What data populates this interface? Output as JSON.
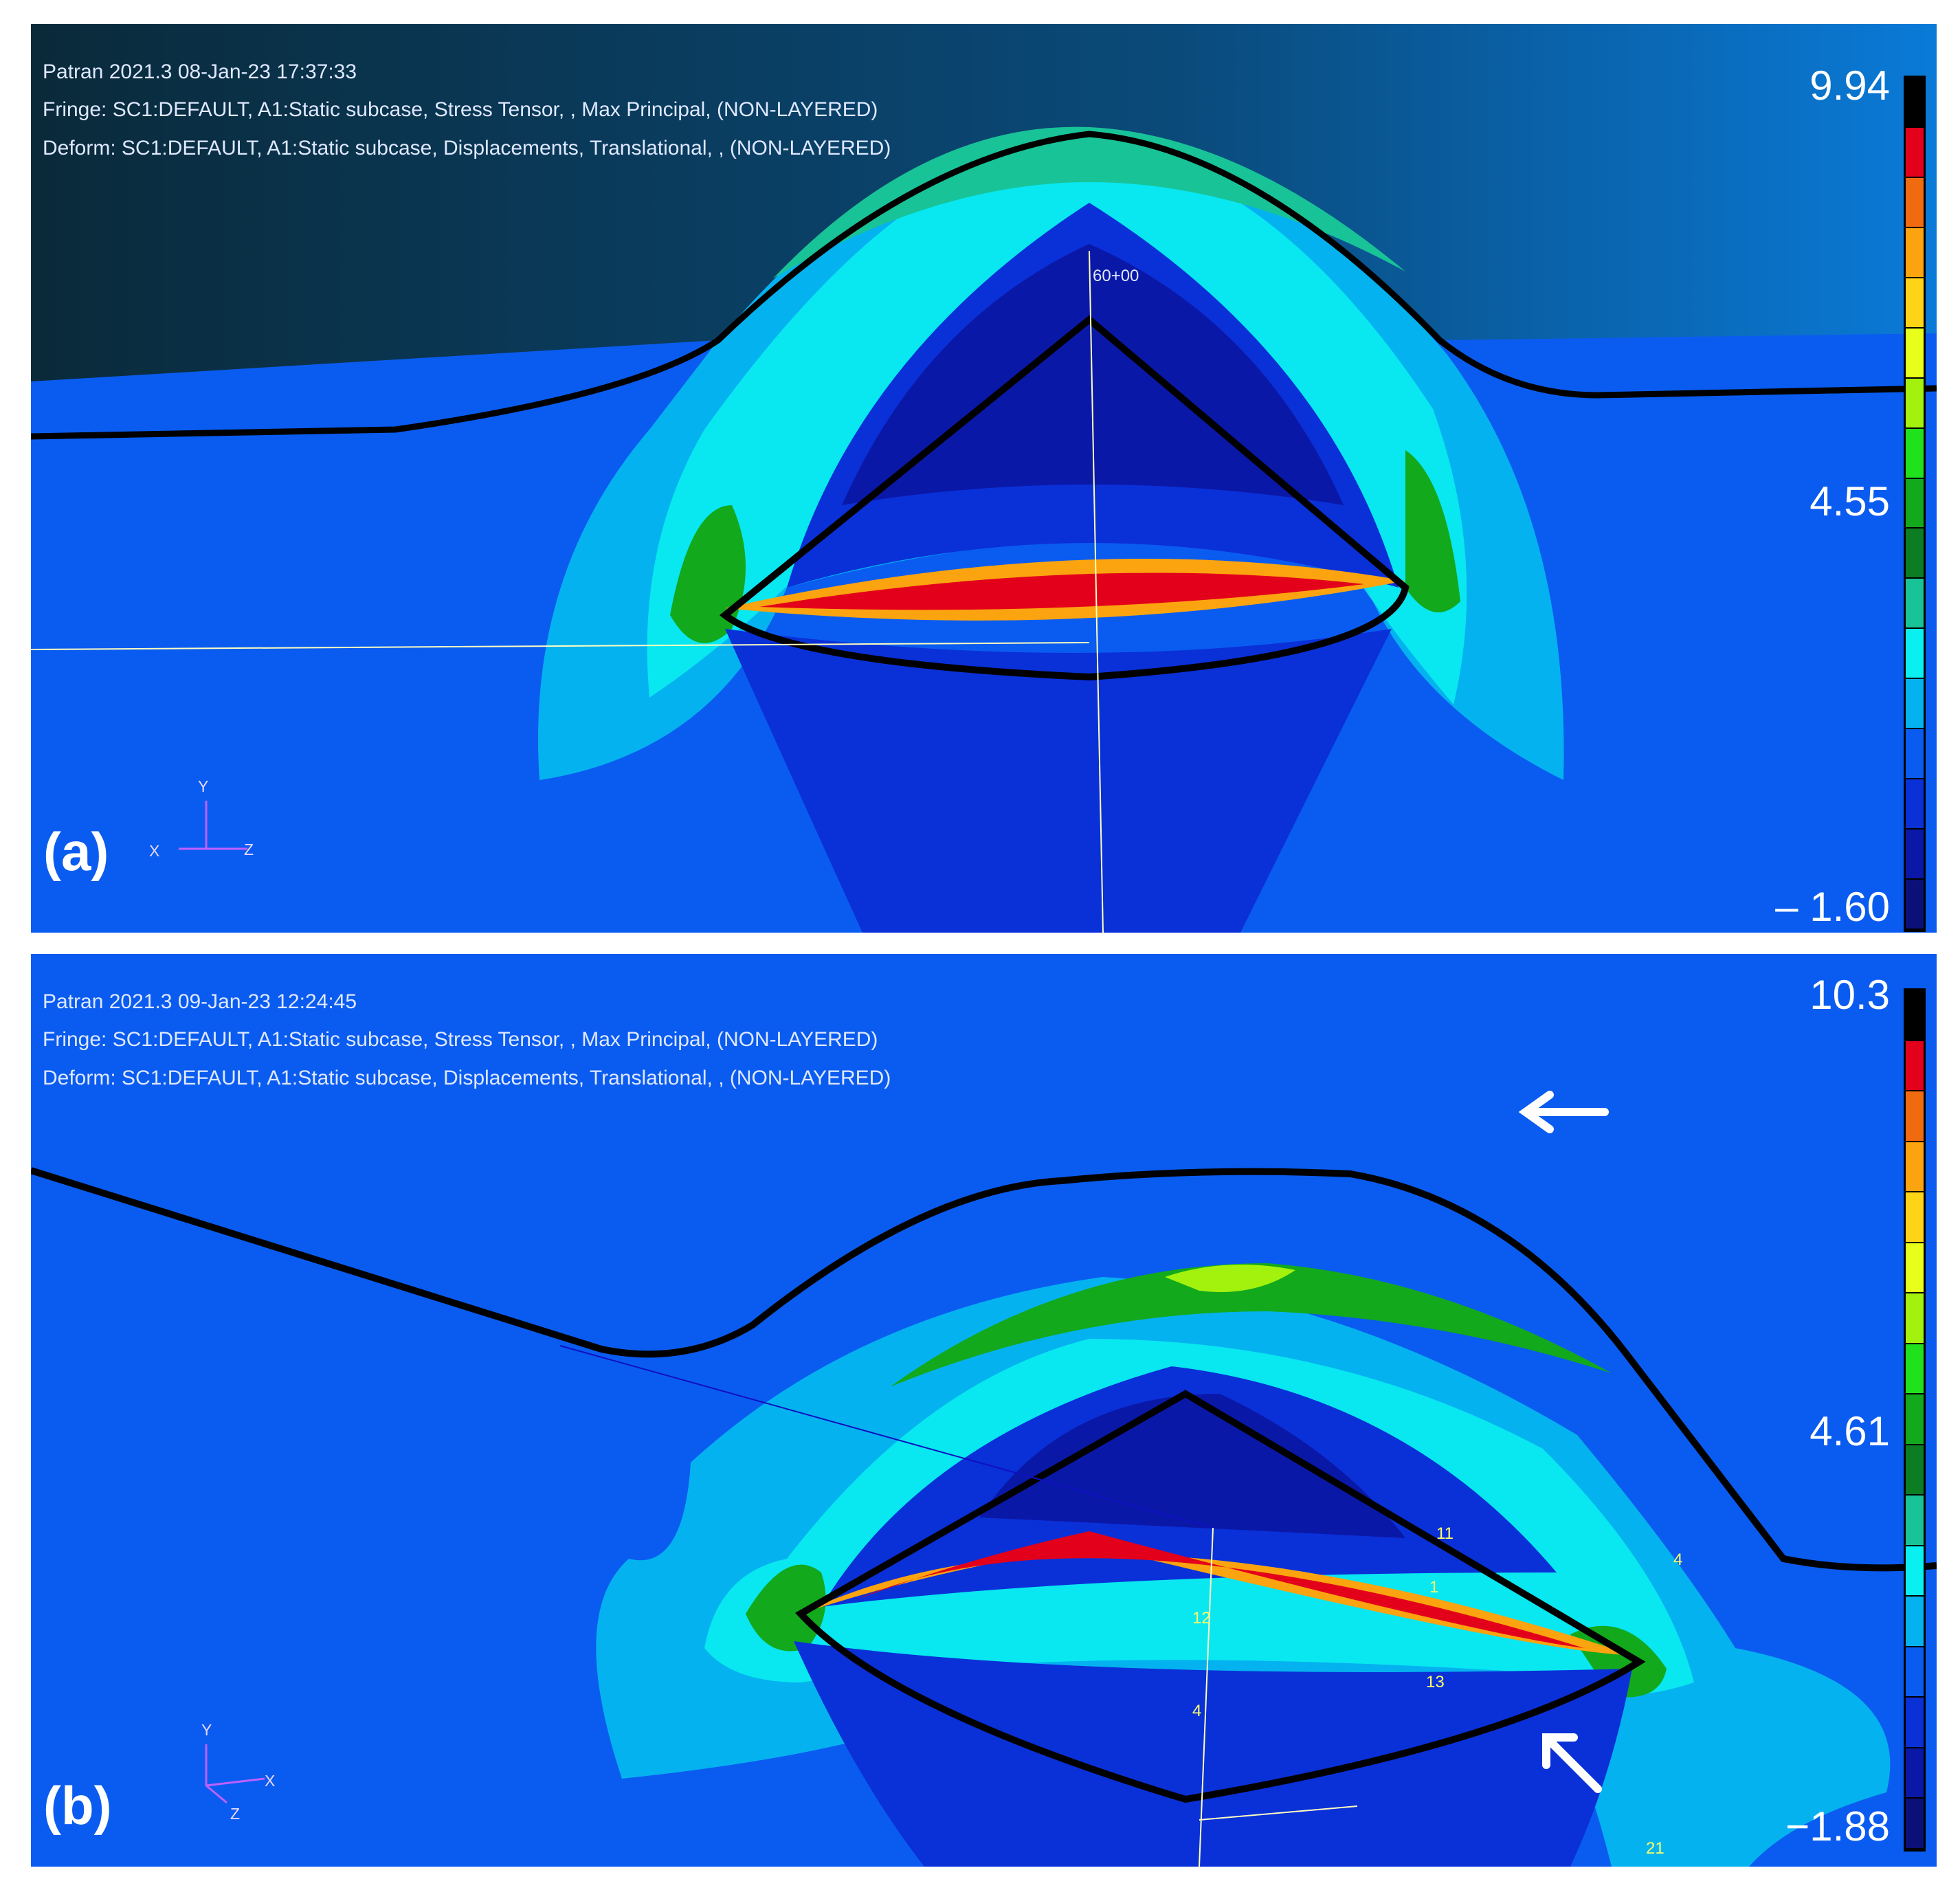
{
  "colors": {
    "fringe_scale": [
      "#000000",
      "#e3001b",
      "#f06a10",
      "#fba40f",
      "#ffd316",
      "#e7ff1a",
      "#a2f20e",
      "#1fe21c",
      "#12a91d",
      "#0c7d22",
      "#18c397",
      "#0af0f0",
      "#05b2f0",
      "#0a5cf0",
      "#0a30d8",
      "#0a18a8",
      "#0a1078"
    ]
  },
  "panel_a": {
    "label": "(a)",
    "header": {
      "line1": "Patran 2021.3 08-Jan-23 17:37:33",
      "line2": "Fringe: SC1:DEFAULT, A1:Static subcase, Stress Tensor, , Max Principal, (NON-LAYERED)",
      "line3": "Deform: SC1:DEFAULT, A1:Static subcase, Displacements, Translational, , (NON-LAYERED)"
    },
    "scale": {
      "max": "9.94",
      "mid": "4.55",
      "min": "– 1.60"
    },
    "node_label": "60+00",
    "axes": {
      "y": "Y",
      "x": "X",
      "z": "Z"
    }
  },
  "panel_b": {
    "label": "(b)",
    "header": {
      "line1": "Patran 2021.3 09-Jan-23 12:24:45",
      "line2": "Fringe: SC1:DEFAULT, A1:Static subcase, Stress Tensor, , Max Principal, (NON-LAYERED)",
      "line3": "Deform: SC1:DEFAULT, A1:Static subcase, Displacements, Translational, , (NON-LAYERED)"
    },
    "scale": {
      "max": "10.3",
      "mid": "4.61",
      "min": "−1.88"
    },
    "node_labels": [
      "11",
      "1",
      "12",
      "13",
      "4",
      "4",
      "21"
    ],
    "axes": {
      "y": "Y",
      "x": "X",
      "z": "Z"
    }
  }
}
